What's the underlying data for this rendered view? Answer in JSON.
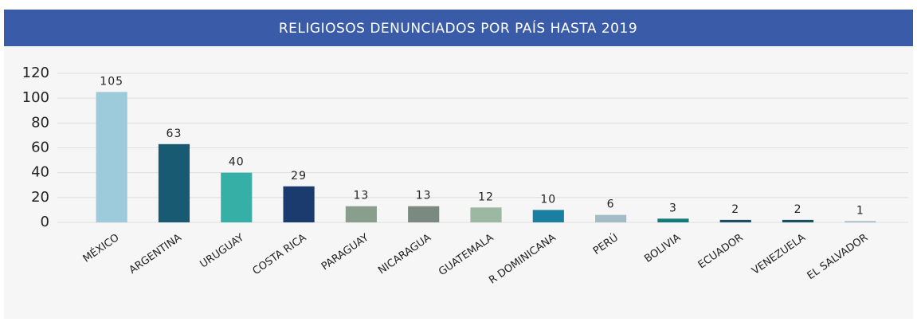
{
  "chart_data": {
    "type": "bar",
    "title": "RELIGIOSOS DENUNCIADOS POR PAÍS HASTA 2019",
    "categories": [
      "MÉXICO",
      "ARGENTINA",
      "URUGUAY",
      "COSTA RICA",
      "PARAGUAY",
      "NICARAGUA",
      "GUATEMALA",
      "R DOMINICANA",
      "PERÚ",
      "BOLIVIA",
      "ECUADOR",
      "VENEZUELA",
      "EL SALVADOR"
    ],
    "values": [
      105,
      63,
      40,
      29,
      13,
      13,
      12,
      10,
      6,
      3,
      2,
      2,
      1
    ],
    "colors": [
      "#9ecbdc",
      "#175a72",
      "#36b0a6",
      "#1b3a6e",
      "#8a9e8d",
      "#7a8a80",
      "#9db8a2",
      "#1a7fa0",
      "#a3bcc8",
      "#147a78",
      "#1c4f63",
      "#1a5160",
      "#a3b5bf"
    ],
    "ylim": [
      0,
      120
    ],
    "yticks": [
      0,
      20,
      40,
      60,
      80,
      100,
      120
    ],
    "grid": true
  }
}
